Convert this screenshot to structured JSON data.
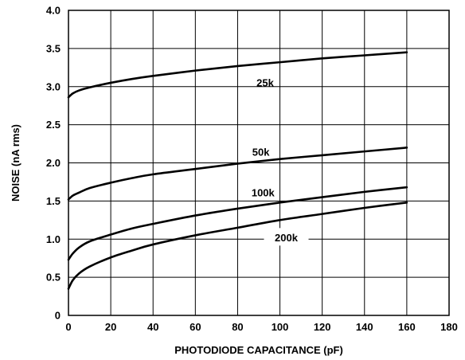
{
  "chart_data": {
    "type": "line",
    "title": "",
    "xlabel": "PHOTODIODE CAPACITANCE (pF)",
    "ylabel": "NOISE (nA rms)",
    "xlim": [
      0,
      180
    ],
    "ylim": [
      0,
      4.0
    ],
    "x_ticks": [
      0,
      20,
      40,
      60,
      80,
      100,
      120,
      140,
      160,
      180
    ],
    "y_ticks": [
      0,
      0.5,
      1.0,
      1.5,
      2.0,
      2.5,
      3.0,
      3.5,
      4.0
    ],
    "x_tick_labels": [
      "0",
      "20",
      "40",
      "60",
      "80",
      "100",
      "120",
      "140",
      "160",
      "180"
    ],
    "y_tick_labels": [
      "0",
      "0.5",
      "1.0",
      "1.5",
      "2.0",
      "2.5",
      "3.0",
      "3.5",
      "4.0"
    ],
    "grid": true,
    "series": [
      {
        "name": "25k",
        "x": [
          0,
          2,
          5,
          10,
          20,
          30,
          40,
          60,
          80,
          100,
          120,
          140,
          160
        ],
        "y": [
          2.86,
          2.91,
          2.95,
          2.99,
          3.05,
          3.1,
          3.14,
          3.21,
          3.27,
          3.32,
          3.37,
          3.41,
          3.45
        ]
      },
      {
        "name": "50k",
        "x": [
          0,
          2,
          5,
          10,
          20,
          30,
          40,
          60,
          80,
          100,
          120,
          140,
          160
        ],
        "y": [
          1.52,
          1.57,
          1.61,
          1.67,
          1.74,
          1.8,
          1.85,
          1.92,
          1.99,
          2.05,
          2.1,
          2.15,
          2.2
        ]
      },
      {
        "name": "100k",
        "x": [
          0,
          2,
          5,
          10,
          20,
          30,
          40,
          60,
          80,
          100,
          120,
          140,
          160
        ],
        "y": [
          0.73,
          0.81,
          0.89,
          0.97,
          1.06,
          1.14,
          1.2,
          1.31,
          1.4,
          1.48,
          1.55,
          1.62,
          1.68
        ]
      },
      {
        "name": "200k",
        "x": [
          0,
          2,
          5,
          10,
          20,
          30,
          40,
          60,
          80,
          100,
          120,
          140,
          160
        ],
        "y": [
          0.35,
          0.46,
          0.55,
          0.64,
          0.76,
          0.85,
          0.93,
          1.05,
          1.15,
          1.25,
          1.33,
          1.41,
          1.48
        ]
      }
    ]
  }
}
